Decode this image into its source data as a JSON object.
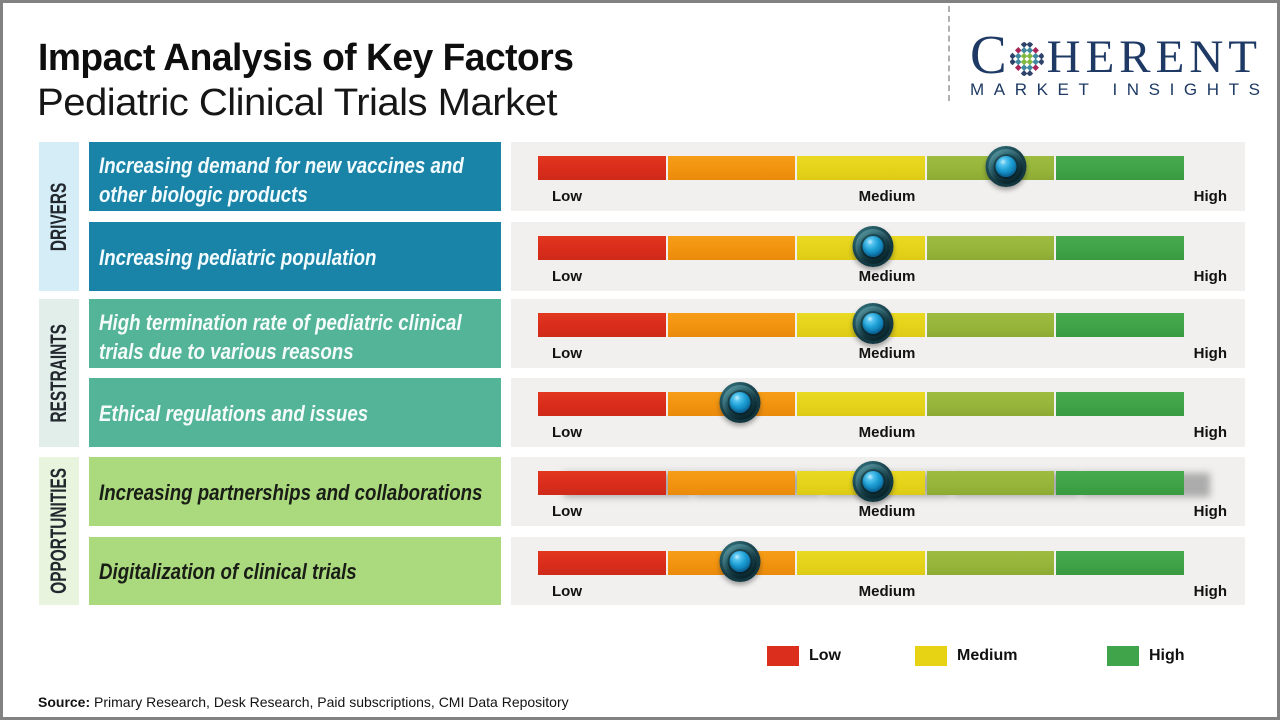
{
  "title": "Impact Analysis of Key Factors",
  "subtitle": "Pediatric Clinical Trials Market",
  "logo": {
    "brand_c": "C",
    "brand_rest": "HERENT",
    "tagline": "MARKET INSIGHTS"
  },
  "scale_labels": {
    "low": "Low",
    "medium": "Medium",
    "high": "High"
  },
  "legend": [
    {
      "label": "Low",
      "color": "#db2e1c"
    },
    {
      "label": "Medium",
      "color": "#e7d314"
    },
    {
      "label": "High",
      "color": "#3fa44a"
    }
  ],
  "source": {
    "label": "Source:",
    "text": " Primary Research, Desk Research, Paid subscriptions, CMI Data Repository"
  },
  "colors": {
    "driver_box": "#1a84a8",
    "restraint_box": "#53b497",
    "opportunity_box": "#abd97e",
    "driver_col": "#d5edf7",
    "restraint_col": "#e2eee9",
    "opportunity_col": "#e9f4de",
    "panel_bg": "#f1f0ef",
    "segment_red": "#d92c1b",
    "segment_orange": "#f2930f",
    "segment_yellow": "#e5d31a",
    "segment_yellow_green": "#96b53a",
    "segment_green": "#40a347",
    "logo_navy": "#1e3a64"
  },
  "chart_data": {
    "type": "impact_scale",
    "title": "Impact Analysis of Key Factors",
    "subtitle": "Pediatric Clinical Trials Market",
    "scale": {
      "min": "Low",
      "mid": "Medium",
      "max": "High",
      "segments": [
        "red",
        "orange",
        "yellow",
        "yellow-green",
        "green"
      ]
    },
    "groups": [
      {
        "category": "DRIVERS",
        "factors": [
          {
            "label": "Increasing demand for new vaccines and other biologic products",
            "label_lines": [
              "Increasing demand for new vaccines and",
              "other biologic products"
            ],
            "impact_position_pct": 72.4,
            "impact_level": "medium-high"
          },
          {
            "label": "Increasing pediatric population",
            "label_lines": [
              "Increasing pediatric population"
            ],
            "impact_position_pct": 51.9,
            "impact_level": "medium"
          }
        ]
      },
      {
        "category": "RESTRAINTS",
        "factors": [
          {
            "label": "High termination rate of pediatric clinical trials due to various reasons",
            "label_lines": [
              "High termination rate of pediatric clinical",
              "trials due to various reasons"
            ],
            "impact_position_pct": 51.9,
            "impact_level": "medium"
          },
          {
            "label": "Ethical regulations and issues",
            "label_lines": [
              "Ethical regulations and issues"
            ],
            "impact_position_pct": 31.3,
            "impact_level": "low-medium"
          }
        ]
      },
      {
        "category": "OPPORTUNITIES",
        "factors": [
          {
            "label": "Increasing partnerships and collaborations",
            "label_lines": [
              "Increasing partnerships and collaborations"
            ],
            "impact_position_pct": 51.9,
            "impact_level": "medium"
          },
          {
            "label": "Digitalization of clinical trials",
            "label_lines": [
              "Digitalization of clinical trials"
            ],
            "impact_position_pct": 31.3,
            "impact_level": "low-medium"
          }
        ]
      }
    ],
    "legend": [
      {
        "label": "Low",
        "color": "#db2e1c"
      },
      {
        "label": "Medium",
        "color": "#e7d314"
      },
      {
        "label": "High",
        "color": "#3fa44a"
      }
    ]
  }
}
